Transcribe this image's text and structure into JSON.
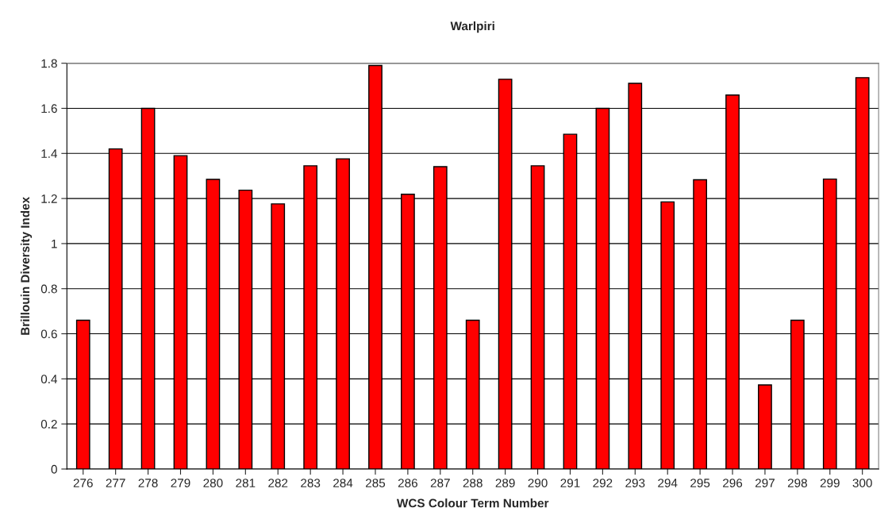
{
  "chart_data": {
    "type": "bar",
    "title": "Warlpiri",
    "xlabel": "WCS Colour Term Number",
    "ylabel": "Brillouin Diversity Index",
    "categories": [
      "276",
      "277",
      "278",
      "279",
      "280",
      "281",
      "282",
      "283",
      "284",
      "285",
      "286",
      "287",
      "288",
      "289",
      "290",
      "291",
      "292",
      "293",
      "294",
      "295",
      "296",
      "297",
      "298",
      "299",
      "300"
    ],
    "values": [
      0.66,
      1.42,
      1.6,
      1.39,
      1.285,
      1.237,
      1.176,
      1.345,
      1.376,
      1.79,
      1.219,
      1.341,
      0.66,
      1.729,
      1.345,
      1.485,
      1.6,
      1.711,
      1.185,
      1.283,
      1.659,
      0.373,
      0.66,
      1.286,
      1.736
    ],
    "color": "#ff0000",
    "ylim": [
      0,
      1.8
    ],
    "yticks": [
      0,
      0.2,
      0.4,
      0.6,
      0.8,
      1,
      1.2,
      1.4,
      1.6,
      1.8
    ],
    "grid": "y"
  }
}
